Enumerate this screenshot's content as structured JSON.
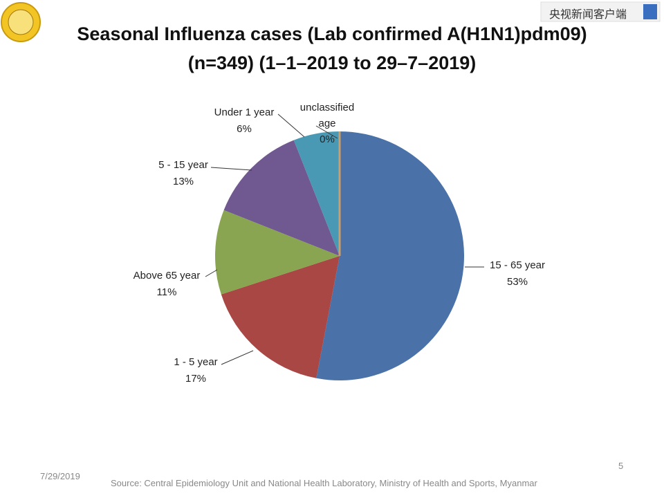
{
  "chart_data": {
    "type": "pie",
    "title": [
      "Seasonal Influenza cases (Lab confirmed A(H1N1)pdm09)",
      "(n=349) (1–1–2019 to 29–7–2019)"
    ],
    "categories": [
      "15 - 65 year",
      "1 - 5 year",
      "Above 65 year",
      "5 - 15 year",
      "Under 1 year",
      "unclassified age"
    ],
    "values": [
      53,
      17,
      11,
      13,
      6,
      0
    ],
    "value_labels": [
      "53%",
      "17%",
      "11%",
      "13%",
      "6%",
      "0%"
    ],
    "colors": [
      "#4a72a8",
      "#a94744",
      "#8aa552",
      "#705890",
      "#4a99b4",
      "#c8a070"
    ]
  },
  "watermark": "央视新闻客户端",
  "footer": {
    "date": "7/29/2019",
    "page": "5",
    "source": "Source: Central Epidemiology Unit and National Health Laboratory, Ministry of Health and Sports, Myanmar"
  }
}
